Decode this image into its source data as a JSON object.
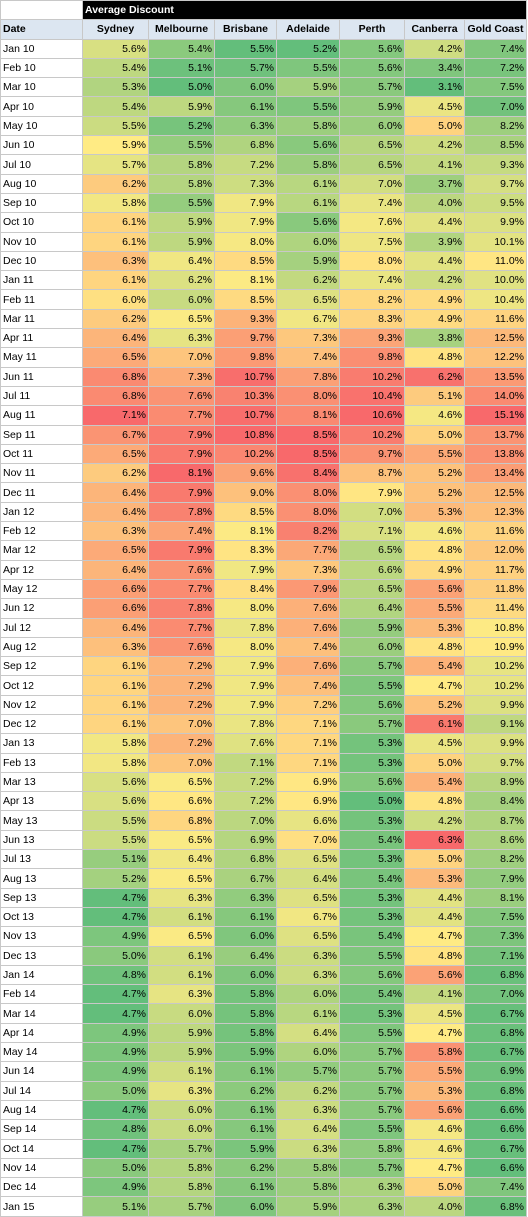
{
  "table": {
    "title": "Average Discount",
    "date_header": "Date",
    "columns": [
      "Sydney",
      "Melbourne",
      "Brisbane",
      "Adelaide",
      "Perth",
      "Canberra",
      "Gold Coast"
    ],
    "rows": [
      {
        "date": "Jan 10",
        "values": [
          "5.6%",
          "5.4%",
          "5.5%",
          "5.2%",
          "5.6%",
          "4.2%",
          "7.4%"
        ]
      },
      {
        "date": "Feb 10",
        "values": [
          "5.4%",
          "5.1%",
          "5.7%",
          "5.5%",
          "5.6%",
          "3.4%",
          "7.2%"
        ]
      },
      {
        "date": "Mar 10",
        "values": [
          "5.3%",
          "5.0%",
          "6.0%",
          "5.9%",
          "5.7%",
          "3.1%",
          "7.5%"
        ]
      },
      {
        "date": "Apr 10",
        "values": [
          "5.4%",
          "5.9%",
          "6.1%",
          "5.5%",
          "5.9%",
          "4.5%",
          "7.0%"
        ]
      },
      {
        "date": "May 10",
        "values": [
          "5.5%",
          "5.2%",
          "6.3%",
          "5.8%",
          "6.0%",
          "5.0%",
          "8.2%"
        ]
      },
      {
        "date": "Jun 10",
        "values": [
          "5.9%",
          "5.5%",
          "6.8%",
          "5.6%",
          "6.5%",
          "4.2%",
          "8.5%"
        ]
      },
      {
        "date": "Jul 10",
        "values": [
          "5.7%",
          "5.8%",
          "7.2%",
          "5.8%",
          "6.5%",
          "4.1%",
          "9.3%"
        ]
      },
      {
        "date": "Aug 10",
        "values": [
          "6.2%",
          "5.8%",
          "7.3%",
          "6.1%",
          "7.0%",
          "3.7%",
          "9.7%"
        ]
      },
      {
        "date": "Sep 10",
        "values": [
          "5.8%",
          "5.5%",
          "7.9%",
          "6.1%",
          "7.4%",
          "4.0%",
          "9.5%"
        ]
      },
      {
        "date": "Oct 10",
        "values": [
          "6.1%",
          "5.9%",
          "7.9%",
          "5.6%",
          "7.6%",
          "4.4%",
          "9.9%"
        ]
      },
      {
        "date": "Nov 10",
        "values": [
          "6.1%",
          "5.9%",
          "8.0%",
          "6.0%",
          "7.5%",
          "3.9%",
          "10.1%"
        ]
      },
      {
        "date": "Dec 10",
        "values": [
          "6.3%",
          "6.4%",
          "8.5%",
          "5.9%",
          "8.0%",
          "4.4%",
          "11.0%"
        ]
      },
      {
        "date": "Jan 11",
        "values": [
          "6.1%",
          "6.2%",
          "8.1%",
          "6.2%",
          "7.4%",
          "4.2%",
          "10.0%"
        ]
      },
      {
        "date": "Feb 11",
        "values": [
          "6.0%",
          "6.0%",
          "8.5%",
          "6.5%",
          "8.2%",
          "4.9%",
          "10.4%"
        ]
      },
      {
        "date": "Mar 11",
        "values": [
          "6.2%",
          "6.5%",
          "9.3%",
          "6.7%",
          "8.3%",
          "4.9%",
          "11.6%"
        ]
      },
      {
        "date": "Apr 11",
        "values": [
          "6.4%",
          "6.3%",
          "9.7%",
          "7.3%",
          "9.3%",
          "3.8%",
          "12.5%"
        ]
      },
      {
        "date": "May 11",
        "values": [
          "6.5%",
          "7.0%",
          "9.8%",
          "7.4%",
          "9.8%",
          "4.8%",
          "12.2%"
        ]
      },
      {
        "date": "Jun 11",
        "values": [
          "6.8%",
          "7.3%",
          "10.7%",
          "7.8%",
          "10.2%",
          "6.2%",
          "13.5%"
        ]
      },
      {
        "date": "Jul 11",
        "values": [
          "6.8%",
          "7.6%",
          "10.3%",
          "8.0%",
          "10.4%",
          "5.1%",
          "14.0%"
        ]
      },
      {
        "date": "Aug 11",
        "values": [
          "7.1%",
          "7.7%",
          "10.7%",
          "8.1%",
          "10.6%",
          "4.6%",
          "15.1%"
        ]
      },
      {
        "date": "Sep 11",
        "values": [
          "6.7%",
          "7.9%",
          "10.8%",
          "8.5%",
          "10.2%",
          "5.0%",
          "13.7%"
        ]
      },
      {
        "date": "Oct 11",
        "values": [
          "6.5%",
          "7.9%",
          "10.2%",
          "8.5%",
          "9.7%",
          "5.5%",
          "13.8%"
        ]
      },
      {
        "date": "Nov 11",
        "values": [
          "6.2%",
          "8.1%",
          "9.6%",
          "8.4%",
          "8.7%",
          "5.2%",
          "13.4%"
        ]
      },
      {
        "date": "Dec 11",
        "values": [
          "6.4%",
          "7.9%",
          "9.0%",
          "8.0%",
          "7.9%",
          "5.2%",
          "12.5%"
        ]
      },
      {
        "date": "Jan 12",
        "values": [
          "6.4%",
          "7.8%",
          "8.5%",
          "8.0%",
          "7.0%",
          "5.3%",
          "12.3%"
        ]
      },
      {
        "date": "Feb 12",
        "values": [
          "6.3%",
          "7.4%",
          "8.1%",
          "8.2%",
          "7.1%",
          "4.6%",
          "11.6%"
        ]
      },
      {
        "date": "Mar 12",
        "values": [
          "6.5%",
          "7.9%",
          "8.3%",
          "7.7%",
          "6.5%",
          "4.8%",
          "12.0%"
        ]
      },
      {
        "date": "Apr 12",
        "values": [
          "6.4%",
          "7.6%",
          "7.9%",
          "7.3%",
          "6.6%",
          "4.9%",
          "11.7%"
        ]
      },
      {
        "date": "May 12",
        "values": [
          "6.6%",
          "7.7%",
          "8.4%",
          "7.9%",
          "6.5%",
          "5.6%",
          "11.8%"
        ]
      },
      {
        "date": "Jun 12",
        "values": [
          "6.6%",
          "7.8%",
          "8.0%",
          "7.6%",
          "6.4%",
          "5.5%",
          "11.4%"
        ]
      },
      {
        "date": "Jul 12",
        "values": [
          "6.4%",
          "7.7%",
          "7.8%",
          "7.6%",
          "5.9%",
          "5.3%",
          "10.8%"
        ]
      },
      {
        "date": "Aug 12",
        "values": [
          "6.3%",
          "7.6%",
          "8.0%",
          "7.4%",
          "6.0%",
          "4.8%",
          "10.9%"
        ]
      },
      {
        "date": "Sep 12",
        "values": [
          "6.1%",
          "7.2%",
          "7.9%",
          "7.6%",
          "5.7%",
          "5.4%",
          "10.2%"
        ]
      },
      {
        "date": "Oct 12",
        "values": [
          "6.1%",
          "7.2%",
          "7.9%",
          "7.4%",
          "5.5%",
          "4.7%",
          "10.2%"
        ]
      },
      {
        "date": "Nov 12",
        "values": [
          "6.1%",
          "7.2%",
          "7.9%",
          "7.2%",
          "5.6%",
          "5.2%",
          "9.9%"
        ]
      },
      {
        "date": "Dec 12",
        "values": [
          "6.1%",
          "7.0%",
          "7.8%",
          "7.1%",
          "5.7%",
          "6.1%",
          "9.1%"
        ]
      },
      {
        "date": "Jan 13",
        "values": [
          "5.8%",
          "7.2%",
          "7.6%",
          "7.1%",
          "5.3%",
          "4.5%",
          "9.9%"
        ]
      },
      {
        "date": "Feb 13",
        "values": [
          "5.8%",
          "7.0%",
          "7.1%",
          "7.1%",
          "5.3%",
          "5.0%",
          "9.7%"
        ]
      },
      {
        "date": "Mar 13",
        "values": [
          "5.6%",
          "6.5%",
          "7.2%",
          "6.9%",
          "5.6%",
          "5.4%",
          "8.9%"
        ]
      },
      {
        "date": "Apr 13",
        "values": [
          "5.6%",
          "6.6%",
          "7.2%",
          "6.9%",
          "5.0%",
          "4.8%",
          "8.4%"
        ]
      },
      {
        "date": "May 13",
        "values": [
          "5.5%",
          "6.8%",
          "7.0%",
          "6.6%",
          "5.3%",
          "4.2%",
          "8.7%"
        ]
      },
      {
        "date": "Jun 13",
        "values": [
          "5.5%",
          "6.5%",
          "6.9%",
          "7.0%",
          "5.4%",
          "6.3%",
          "8.6%"
        ]
      },
      {
        "date": "Jul 13",
        "values": [
          "5.1%",
          "6.4%",
          "6.8%",
          "6.5%",
          "5.3%",
          "5.0%",
          "8.2%"
        ]
      },
      {
        "date": "Aug 13",
        "values": [
          "5.2%",
          "6.5%",
          "6.7%",
          "6.4%",
          "5.4%",
          "5.3%",
          "7.9%"
        ]
      },
      {
        "date": "Sep 13",
        "values": [
          "4.7%",
          "6.3%",
          "6.3%",
          "6.5%",
          "5.3%",
          "4.4%",
          "8.1%"
        ]
      },
      {
        "date": "Oct 13",
        "values": [
          "4.7%",
          "6.1%",
          "6.1%",
          "6.7%",
          "5.3%",
          "4.4%",
          "7.5%"
        ]
      },
      {
        "date": "Nov 13",
        "values": [
          "4.9%",
          "6.5%",
          "6.0%",
          "6.5%",
          "5.4%",
          "4.7%",
          "7.3%"
        ]
      },
      {
        "date": "Dec 13",
        "values": [
          "5.0%",
          "6.1%",
          "6.4%",
          "6.3%",
          "5.5%",
          "4.8%",
          "7.1%"
        ]
      },
      {
        "date": "Jan 14",
        "values": [
          "4.8%",
          "6.1%",
          "6.0%",
          "6.3%",
          "5.6%",
          "5.6%",
          "6.8%"
        ]
      },
      {
        "date": "Feb 14",
        "values": [
          "4.7%",
          "6.3%",
          "5.8%",
          "6.0%",
          "5.4%",
          "4.1%",
          "7.0%"
        ]
      },
      {
        "date": "Mar 14",
        "values": [
          "4.7%",
          "6.0%",
          "5.8%",
          "6.1%",
          "5.3%",
          "4.5%",
          "6.7%"
        ]
      },
      {
        "date": "Apr 14",
        "values": [
          "4.9%",
          "5.9%",
          "5.8%",
          "6.4%",
          "5.5%",
          "4.7%",
          "6.8%"
        ]
      },
      {
        "date": "May 14",
        "values": [
          "4.9%",
          "5.9%",
          "5.9%",
          "6.0%",
          "5.7%",
          "5.8%",
          "6.7%"
        ]
      },
      {
        "date": "Jun 14",
        "values": [
          "4.9%",
          "6.1%",
          "6.1%",
          "5.7%",
          "5.7%",
          "5.5%",
          "6.9%"
        ]
      },
      {
        "date": "Jul 14",
        "values": [
          "5.0%",
          "6.3%",
          "6.2%",
          "6.2%",
          "5.7%",
          "5.3%",
          "6.8%"
        ]
      },
      {
        "date": "Aug 14",
        "values": [
          "4.7%",
          "6.0%",
          "6.1%",
          "6.3%",
          "5.7%",
          "5.6%",
          "6.6%"
        ]
      },
      {
        "date": "Sep 14",
        "values": [
          "4.8%",
          "6.0%",
          "6.1%",
          "6.4%",
          "5.5%",
          "4.6%",
          "6.6%"
        ]
      },
      {
        "date": "Oct 14",
        "values": [
          "4.7%",
          "5.7%",
          "5.9%",
          "6.3%",
          "5.8%",
          "4.6%",
          "6.7%"
        ]
      },
      {
        "date": "Nov 14",
        "values": [
          "5.0%",
          "5.8%",
          "6.2%",
          "5.8%",
          "5.7%",
          "4.7%",
          "6.6%"
        ]
      },
      {
        "date": "Dec 14",
        "values": [
          "4.9%",
          "5.8%",
          "6.1%",
          "5.8%",
          "6.3%",
          "5.0%",
          "7.4%"
        ]
      },
      {
        "date": "Jan 15",
        "values": [
          "5.1%",
          "5.7%",
          "6.0%",
          "5.9%",
          "6.3%",
          "4.0%",
          "6.8%"
        ]
      }
    ]
  }
}
